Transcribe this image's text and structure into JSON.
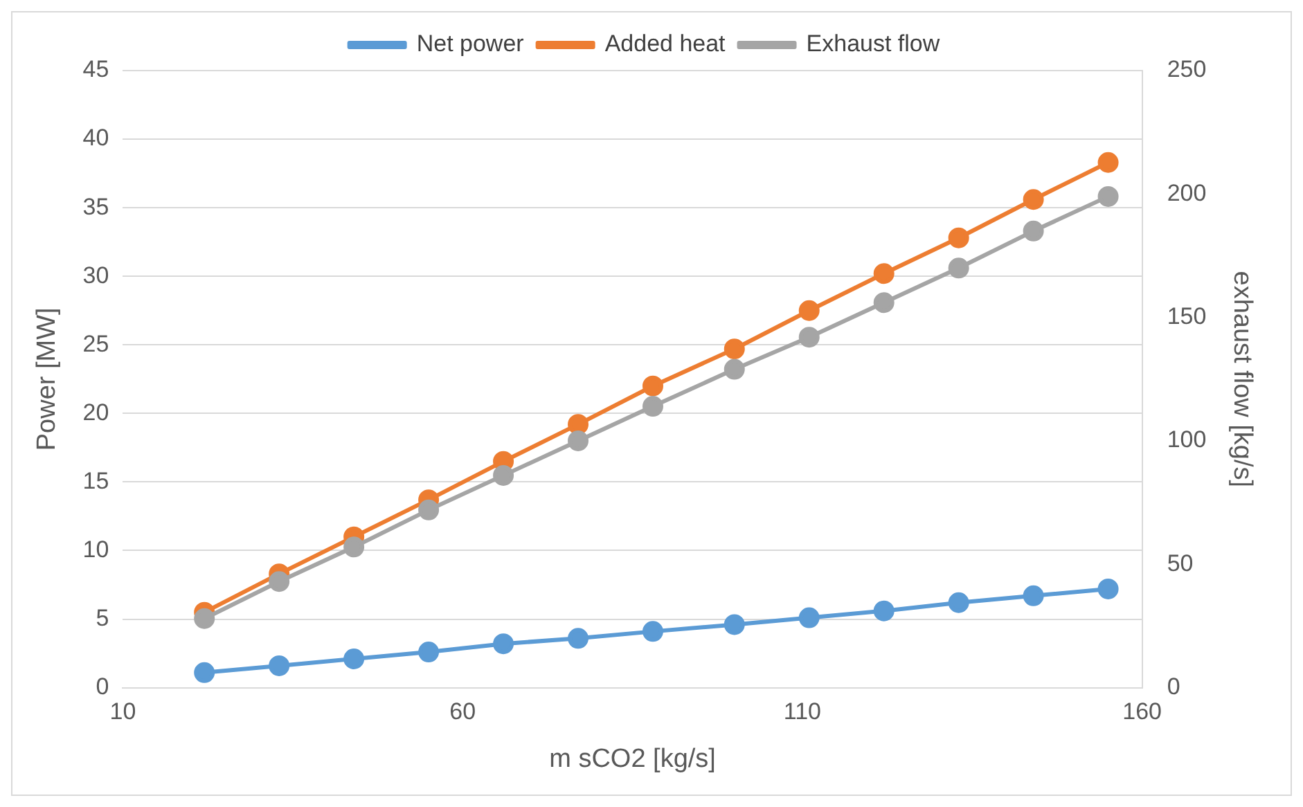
{
  "chart_data": {
    "type": "line",
    "xlabel": "m sCO2 [kg/s]",
    "ylabel": "Power [MW]",
    "y2label": "exhaust flow [kg/s]",
    "x": [
      22,
      33,
      44,
      55,
      66,
      77,
      88,
      100,
      111,
      122,
      133,
      144,
      155
    ],
    "xlim": [
      10,
      160
    ],
    "xticks": [
      10,
      60,
      110,
      160
    ],
    "ylim": [
      0,
      45
    ],
    "yticks": [
      0,
      5,
      10,
      15,
      20,
      25,
      30,
      35,
      40,
      45
    ],
    "y2lim": [
      0,
      250
    ],
    "y2ticks": [
      0,
      50,
      100,
      150,
      200,
      250
    ],
    "series": [
      {
        "name": "Net power",
        "color": "#5b9bd5",
        "values": [
          1.1,
          1.6,
          2.1,
          2.6,
          3.2,
          3.6,
          4.1,
          4.6,
          5.1,
          5.6,
          6.2,
          6.7,
          7.2
        ]
      },
      {
        "name": "Added heat",
        "color": "#ed7d31",
        "values": [
          5.5,
          8.3,
          11.0,
          13.7,
          16.5,
          19.2,
          22.0,
          24.7,
          27.5,
          30.2,
          32.8,
          35.6,
          38.3
        ]
      },
      {
        "name": "Exhaust flow",
        "color": "#a5a5a5",
        "axis": "y2",
        "values": [
          28,
          43,
          57,
          72,
          86,
          100,
          114,
          129,
          142,
          156,
          170,
          185,
          199
        ]
      }
    ],
    "grid": "y",
    "legend": "top",
    "marker": "circle",
    "line_style": "solid"
  }
}
